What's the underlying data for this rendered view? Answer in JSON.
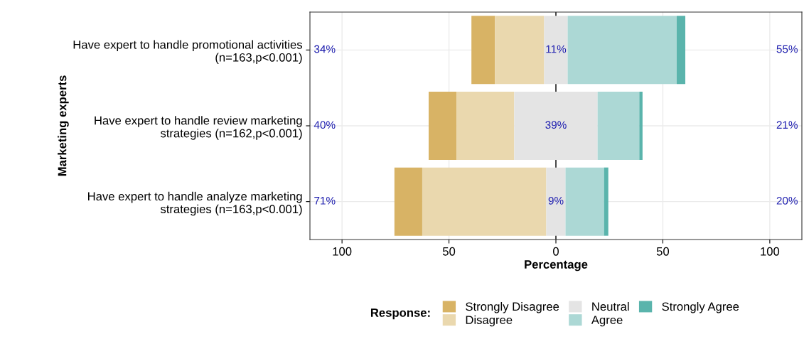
{
  "chart_data": {
    "type": "bar",
    "orientation": "horizontal",
    "ylabel": "Marketing experts",
    "xlabel": "Percentage",
    "legend_title": "Response:",
    "legend": "bottom",
    "grid": true,
    "categories": [
      "Have expert to handle promotional activities\n(n=163,p<0.001)",
      "Have expert to handle review marketing\nstrategies (n=162,p<0.001)",
      "Have expert to handle analyze marketing\nstrategies (n=163,p<0.001)"
    ],
    "series": [
      {
        "name": "Strongly Disagree",
        "color": "#d8b365",
        "values": [
          11,
          13,
          13
        ],
        "base": [
          -39.5,
          -59.5,
          -75.5
        ]
      },
      {
        "name": "Disagree",
        "color": "#ead8ae",
        "values": [
          23,
          27,
          58
        ],
        "base": [
          -28.5,
          -46.5,
          -62.5
        ]
      },
      {
        "name": "Neutral",
        "color": "#e4e4e4",
        "values": [
          11,
          39,
          9
        ],
        "base": [
          -5.5,
          -19.5,
          -4.5
        ]
      },
      {
        "name": "Agree",
        "color": "#acd8d5",
        "values": [
          51,
          19.5,
          18
        ],
        "base": [
          5.5,
          19.5,
          4.5
        ]
      },
      {
        "name": "Strongly Agree",
        "color": "#5ab4ac",
        "values": [
          4,
          1.5,
          2
        ],
        "base": [
          56.5,
          39,
          22.5
        ]
      }
    ],
    "xlim": [
      -115,
      115
    ],
    "xticks": [
      {
        "value": -100,
        "label": "100"
      },
      {
        "value": -50,
        "label": "50"
      },
      0,
      50,
      100
    ],
    "ref_lines": [
      {
        "axis": "x",
        "value": 0,
        "color": "#000000"
      }
    ],
    "annotations": [
      "34%",
      "11%",
      "55%",
      "40%",
      "39%",
      "21%",
      "71%",
      "9%",
      "20%"
    ]
  }
}
